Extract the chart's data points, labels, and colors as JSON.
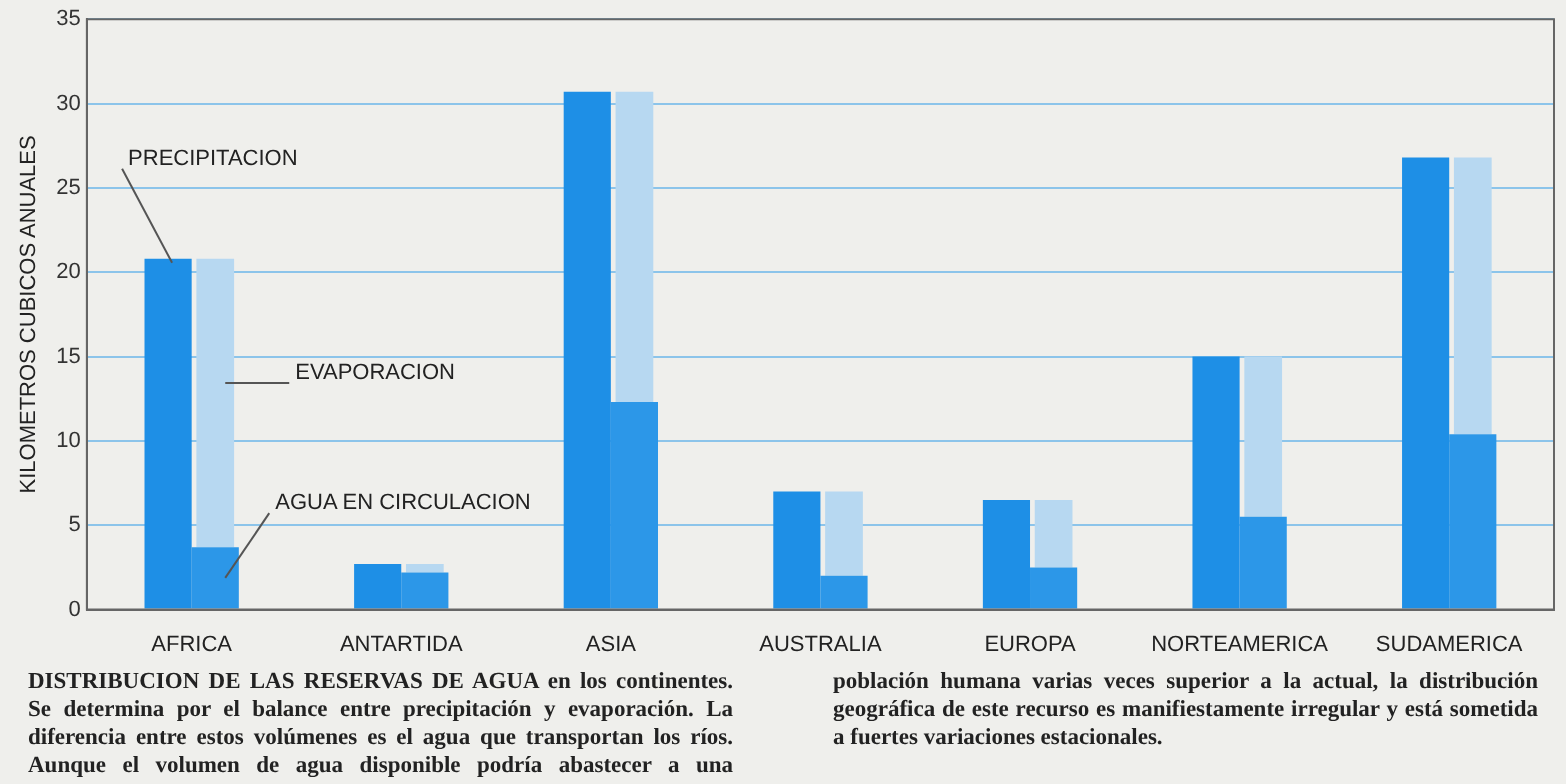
{
  "chart_data": {
    "type": "bar",
    "ylabel": "KILOMETROS CUBICOS ANUALES",
    "categories": [
      "AFRICA",
      "ANTARTIDA",
      "ASIA",
      "AUSTRALIA",
      "EUROPA",
      "NORTEAMERICA",
      "SUDAMERICA"
    ],
    "series": [
      {
        "name": "PRECIPITACION",
        "color": "#1e8fe6",
        "values": [
          20.8,
          2.7,
          30.7,
          7.0,
          6.5,
          15.0,
          26.8
        ]
      },
      {
        "name": "AGUA EN CIRCULACION",
        "color": "#2c97e8",
        "values": [
          3.7,
          2.2,
          12.3,
          2.0,
          2.5,
          5.5,
          10.4
        ]
      },
      {
        "name": "EVAPORACION",
        "color": "#b7d8f1",
        "values": [
          17.1,
          0.5,
          18.4,
          5.0,
          4.0,
          9.5,
          16.4
        ],
        "base": [
          3.7,
          2.2,
          12.3,
          2.0,
          2.5,
          5.5,
          10.4
        ]
      }
    ],
    "ylim": [
      0,
      35
    ],
    "yticks": [
      0,
      5,
      10,
      15,
      20,
      25,
      30,
      35
    ],
    "grid": "y",
    "legend": false,
    "annotations": [
      "DISTRIBUCION DE LAS RESERVAS DE AGUA en los continentes. Se determina por el balance entre precipitación y evaporación. La diferencia entre estos volúmenes es el agua que transportan los ríos. Aunque el volumen de agua disponible podría abastecer a una población humana varias veces superior a la actual, la distribución geográfica de este recurso es manifiestamente irregular y está sometida a fuertes variaciones estacionales."
    ]
  }
}
